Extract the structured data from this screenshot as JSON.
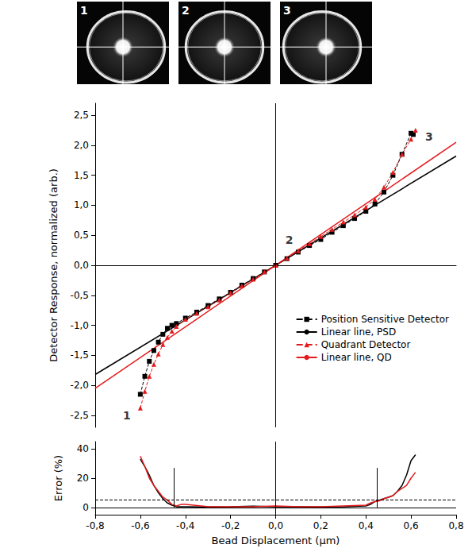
{
  "panels": [
    {
      "label": "1"
    },
    {
      "label": "2"
    },
    {
      "label": "3"
    }
  ],
  "chart_data": [
    {
      "type": "line",
      "y_label": "Detector Response, normalized (arb.)",
      "xlim": [
        -0.8,
        0.8
      ],
      "ylim": [
        -2.7,
        2.7
      ],
      "yticks": [
        {
          "value": -2.5,
          "label": "-2,5"
        },
        {
          "value": -2,
          "label": "-2,0"
        },
        {
          "value": -1.5,
          "label": "-1,5"
        },
        {
          "value": -1,
          "label": "-1,0"
        },
        {
          "value": -0.5,
          "label": "-0,5"
        },
        {
          "value": 0,
          "label": "0,0"
        },
        {
          "value": 0.5,
          "label": "0,5"
        },
        {
          "value": 1,
          "label": "1,0"
        },
        {
          "value": 1.5,
          "label": "1,5"
        },
        {
          "value": 2,
          "label": "2,0"
        },
        {
          "value": 2.5,
          "label": "2,5"
        }
      ],
      "tick_labels": "y",
      "grid": false,
      "legend": "lower right",
      "vlines": [
        {
          "x": 0
        }
      ],
      "series": [
        {
          "name": "Position Sensitive Detector",
          "color": "#000000",
          "marker": "square",
          "line_style": "dashed",
          "x": [
            -0.6,
            -0.58,
            -0.56,
            -0.54,
            -0.52,
            -0.5,
            -0.48,
            -0.46,
            -0.44,
            -0.4,
            -0.35,
            -0.3,
            -0.25,
            -0.2,
            -0.15,
            -0.1,
            -0.05,
            0,
            0.05,
            0.1,
            0.15,
            0.2,
            0.25,
            0.3,
            0.35,
            0.4,
            0.44,
            0.48,
            0.52,
            0.56,
            0.6,
            0.61
          ],
          "values": [
            -2.15,
            -1.85,
            -1.6,
            -1.42,
            -1.28,
            -1.15,
            -1.05,
            -1.0,
            -0.97,
            -0.88,
            -0.78,
            -0.67,
            -0.56,
            -0.45,
            -0.33,
            -0.22,
            -0.11,
            0,
            0.11,
            0.22,
            0.33,
            0.43,
            0.55,
            0.66,
            0.78,
            0.9,
            1.02,
            1.22,
            1.5,
            1.85,
            2.2,
            2.18
          ]
        },
        {
          "name": "Linear line, PSD",
          "color": "#000000",
          "marker": "none",
          "line_style": "solid",
          "x": [
            -0.8,
            0.8
          ],
          "values": [
            -1.82,
            1.82
          ]
        },
        {
          "name": "Quadrant Detector",
          "color": "#e41a1c",
          "marker": "triangle",
          "line_style": "dashed",
          "x": [
            -0.6,
            -0.58,
            -0.56,
            -0.54,
            -0.52,
            -0.5,
            -0.48,
            -0.46,
            -0.44,
            -0.4,
            -0.35,
            -0.3,
            -0.25,
            -0.2,
            -0.15,
            -0.1,
            -0.05,
            0,
            0.05,
            0.1,
            0.15,
            0.2,
            0.25,
            0.3,
            0.35,
            0.4,
            0.44,
            0.48,
            0.52,
            0.56,
            0.6,
            0.62
          ],
          "values": [
            -2.38,
            -2.1,
            -1.85,
            -1.65,
            -1.48,
            -1.32,
            -1.2,
            -1.1,
            -1.02,
            -0.9,
            -0.8,
            -0.69,
            -0.58,
            -0.46,
            -0.34,
            -0.23,
            -0.11,
            0,
            0.12,
            0.24,
            0.36,
            0.48,
            0.6,
            0.72,
            0.84,
            0.97,
            1.1,
            1.3,
            1.55,
            1.85,
            2.1,
            2.25
          ]
        },
        {
          "name": "Linear line, QD",
          "color": "#e41a1c",
          "marker": "none",
          "line_style": "solid",
          "x": [
            -0.8,
            0.8
          ],
          "values": [
            -2.05,
            2.05
          ]
        }
      ],
      "annotations": [
        {
          "text": "1",
          "x": -0.66,
          "y": -2.5
        },
        {
          "text": "2",
          "x": 0.06,
          "y": 0.42
        },
        {
          "text": "3",
          "x": 0.68,
          "y": 2.15
        }
      ]
    },
    {
      "type": "line",
      "x_label": "Bead Displacement (µm)",
      "y_label": "Error (%)",
      "xlim": [
        -0.8,
        0.8
      ],
      "xticks": [
        {
          "value": -0.8,
          "label": "-0,8"
        },
        {
          "value": -0.6,
          "label": "-0,6"
        },
        {
          "value": -0.4,
          "label": "-0,4"
        },
        {
          "value": -0.2,
          "label": "-0,2"
        },
        {
          "value": 0,
          "label": "0,0"
        },
        {
          "value": 0.2,
          "label": "0,2"
        },
        {
          "value": 0.4,
          "label": "0,4"
        },
        {
          "value": 0.6,
          "label": "0,6"
        },
        {
          "value": 0.8,
          "label": "0,8"
        }
      ],
      "ylim": [
        -5,
        45
      ],
      "yticks": [
        0,
        20,
        40
      ],
      "grid": false,
      "hlines": [
        {
          "y": 0,
          "line_style": "solid"
        },
        {
          "y": 5,
          "line_style": "dashed"
        }
      ],
      "vlines": [
        {
          "x": 0
        },
        {
          "x": -0.45,
          "y": [
            0,
            27
          ]
        },
        {
          "x": 0.45,
          "y": [
            0,
            27
          ]
        }
      ],
      "series": [
        {
          "color": "#000000",
          "line_style": "solid",
          "marker": "none",
          "x": [
            -0.6,
            -0.58,
            -0.56,
            -0.54,
            -0.52,
            -0.5,
            -0.48,
            -0.46,
            -0.44,
            -0.42,
            -0.4,
            -0.3,
            -0.2,
            -0.1,
            0,
            0.1,
            0.2,
            0.3,
            0.4,
            0.42,
            0.44,
            0.46,
            0.48,
            0.5,
            0.52,
            0.54,
            0.56,
            0.58,
            0.6,
            0.62
          ],
          "values": [
            33,
            28,
            22,
            15,
            10,
            6,
            3,
            1.5,
            0.5,
            0.5,
            0.5,
            0.3,
            0.5,
            0.8,
            0.5,
            0.5,
            0.3,
            0.5,
            1,
            2,
            4,
            5,
            6,
            7,
            8,
            11,
            15,
            22,
            32,
            36
          ]
        },
        {
          "color": "#e41a1c",
          "line_style": "solid",
          "marker": "none",
          "x": [
            -0.6,
            -0.58,
            -0.56,
            -0.54,
            -0.52,
            -0.5,
            -0.48,
            -0.46,
            -0.44,
            -0.42,
            -0.4,
            -0.3,
            -0.2,
            -0.1,
            0,
            0.1,
            0.2,
            0.3,
            0.4,
            0.42,
            0.44,
            0.46,
            0.48,
            0.5,
            0.52,
            0.54,
            0.56,
            0.58,
            0.6,
            0.62
          ],
          "values": [
            35,
            28,
            20,
            15,
            11,
            7,
            5,
            2,
            1,
            2,
            2,
            0.5,
            0.5,
            0.5,
            1,
            0.5,
            0.5,
            1,
            1.5,
            3,
            4,
            4.5,
            6,
            7,
            8,
            11,
            13,
            15,
            20,
            24
          ]
        }
      ]
    }
  ]
}
